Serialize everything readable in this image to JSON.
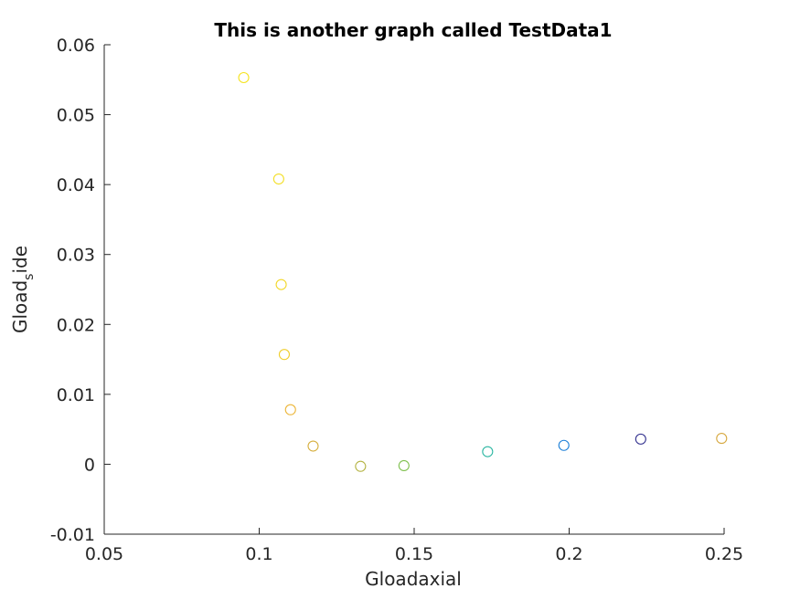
{
  "chart_data": {
    "type": "scatter",
    "title": "This is another graph called TestData1",
    "xlabel": "Gloadaxial",
    "ylabel": {
      "main": "Gload",
      "subscript": "s",
      "rest": "ide"
    },
    "xlim": [
      0.05,
      0.25
    ],
    "ylim": [
      -0.01,
      0.06
    ],
    "xticks": [
      0.05,
      0.1,
      0.15,
      0.2,
      0.25
    ],
    "xtick_labels": [
      "0.05",
      "0.1",
      "0.15",
      "0.2",
      "0.25"
    ],
    "yticks": [
      -0.01,
      0,
      0.01,
      0.02,
      0.03,
      0.04,
      0.05,
      0.06
    ],
    "ytick_labels": [
      "-0.01",
      "0",
      "0.01",
      "0.02",
      "0.03",
      "0.04",
      "0.05",
      "0.06"
    ],
    "grid": false,
    "marker": "open-circle",
    "points": [
      {
        "x": 0.095,
        "y": 0.0553,
        "color": "#F5E31E"
      },
      {
        "x": 0.1063,
        "y": 0.0408,
        "color": "#F3DE25"
      },
      {
        "x": 0.1071,
        "y": 0.0257,
        "color": "#F2D82A"
      },
      {
        "x": 0.1081,
        "y": 0.0157,
        "color": "#F0CE2E"
      },
      {
        "x": 0.1101,
        "y": 0.0078,
        "color": "#ECB63A"
      },
      {
        "x": 0.1174,
        "y": 0.0026,
        "color": "#D6AF3E"
      },
      {
        "x": 0.1327,
        "y": -0.0003,
        "color": "#B4B342"
      },
      {
        "x": 0.1467,
        "y": -0.0002,
        "color": "#7FC04E"
      },
      {
        "x": 0.1737,
        "y": 0.0018,
        "color": "#2EB7A3"
      },
      {
        "x": 0.1983,
        "y": 0.0027,
        "color": "#1C7FD8"
      },
      {
        "x": 0.2231,
        "y": 0.0036,
        "color": "#2E2C8C"
      },
      {
        "x": 0.2492,
        "y": 0.0037,
        "color": "#D7A941"
      }
    ]
  }
}
